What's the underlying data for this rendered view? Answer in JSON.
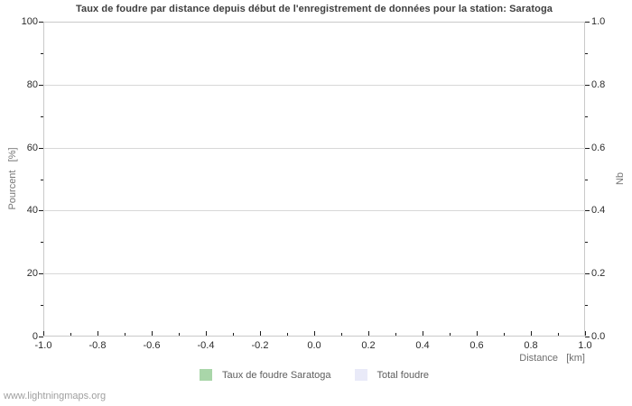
{
  "chart_data": {
    "type": "bar",
    "title": "Taux de foudre par distance depuis début de l'enregistrement de données pour la station: Saratoga",
    "x": {
      "label": "Distance   [km]",
      "range": [
        -1.0,
        1.0
      ],
      "ticks": [
        -1.0,
        -0.8,
        -0.6,
        -0.4,
        -0.2,
        0.0,
        0.2,
        0.4,
        0.6,
        0.8,
        1.0
      ],
      "tick_labels": [
        "-1.0",
        "-0.8",
        "-0.6",
        "-0.4",
        "-0.2",
        "0.0",
        "0.2",
        "0.4",
        "0.6",
        "0.8",
        "1.0"
      ],
      "minor_ticks": [
        -0.9,
        -0.7,
        -0.5,
        -0.3,
        -0.1,
        0.1,
        0.3,
        0.5,
        0.7,
        0.9
      ]
    },
    "y_left": {
      "label": "Pourcent   [%]",
      "range": [
        0,
        100
      ],
      "ticks": [
        0,
        20,
        40,
        60,
        80,
        100
      ],
      "tick_labels": [
        "0",
        "20",
        "40",
        "60",
        "80",
        "100"
      ],
      "minor_ticks": [
        10,
        30,
        50,
        70,
        90
      ]
    },
    "y_right": {
      "label": "Nb",
      "range": [
        0.0,
        1.0
      ],
      "ticks": [
        0.0,
        0.2,
        0.4,
        0.6,
        0.8,
        1.0
      ],
      "tick_labels": [
        "0.0",
        "0.2",
        "0.4",
        "0.6",
        "0.8",
        "1.0"
      ],
      "minor_ticks": [
        0.1,
        0.3,
        0.5,
        0.7,
        0.9
      ]
    },
    "grid": "horizontal-major-only",
    "legend_position": "bottom-center",
    "series": [
      {
        "name": "Taux de foudre Saratoga",
        "color": "#a9d6a9",
        "values": []
      },
      {
        "name": "Total foudre",
        "color": "#e9eaf8",
        "values": []
      }
    ],
    "colors": {
      "plot_border": "#c9c9c9",
      "gridline": "#d8d8d8",
      "tick": "#1c1c1c"
    }
  },
  "footer": {
    "watermark": "www.lightningmaps.org"
  }
}
